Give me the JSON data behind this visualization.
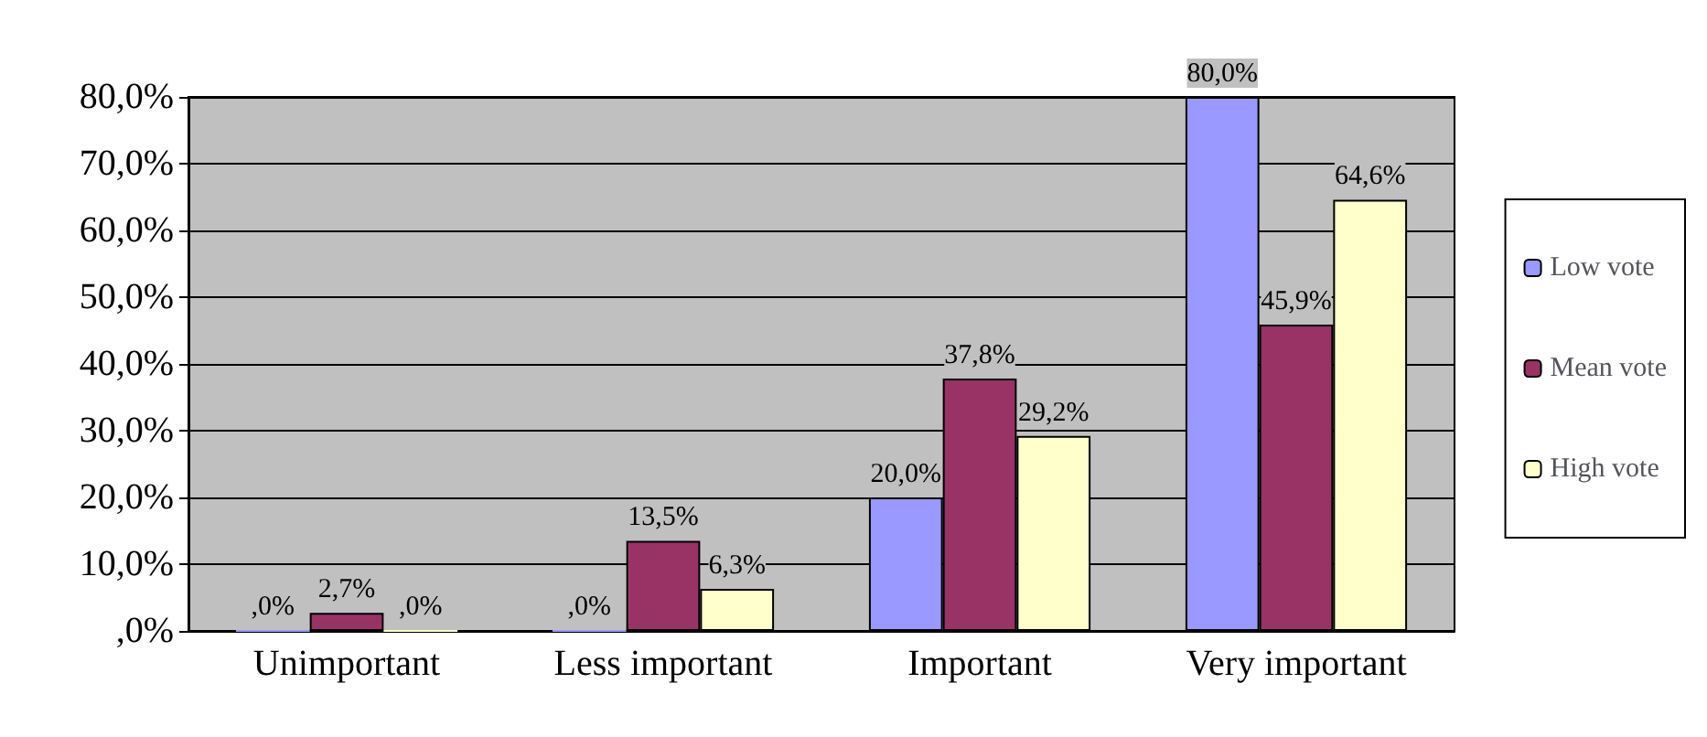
{
  "chart_data": {
    "type": "bar",
    "categories": [
      "Unimportant",
      "Less important",
      "Important",
      "Very important"
    ],
    "series": [
      {
        "name": "Low vote",
        "color": "#9999ff",
        "values": [
          0,
          0,
          20.0,
          80.0
        ],
        "value_labels": [
          ",0%",
          ",0%",
          "20,0%",
          "80,0%"
        ]
      },
      {
        "name": "Mean vote",
        "color": "#993366",
        "values": [
          2.7,
          13.5,
          37.8,
          45.9
        ],
        "value_labels": [
          "2,7%",
          "13,5%",
          "37,8%",
          "45,9%"
        ]
      },
      {
        "name": "High vote",
        "color": "#ffffcc",
        "values": [
          0,
          6.3,
          29.2,
          64.6
        ],
        "value_labels": [
          ",0%",
          "6,3%",
          "29,2%",
          "64,6%"
        ]
      }
    ],
    "ylim": [
      0,
      80
    ],
    "yticks": [
      {
        "value": 0,
        "label": ",0%"
      },
      {
        "value": 10,
        "label": "10,0%"
      },
      {
        "value": 20,
        "label": "20,0%"
      },
      {
        "value": 30,
        "label": "30,0%"
      },
      {
        "value": 40,
        "label": "40,0%"
      },
      {
        "value": 50,
        "label": "50,0%"
      },
      {
        "value": 60,
        "label": "60,0%"
      },
      {
        "value": 70,
        "label": "70,0%"
      },
      {
        "value": 80,
        "label": "80,0%"
      }
    ],
    "grid": "y",
    "legend": "right"
  }
}
